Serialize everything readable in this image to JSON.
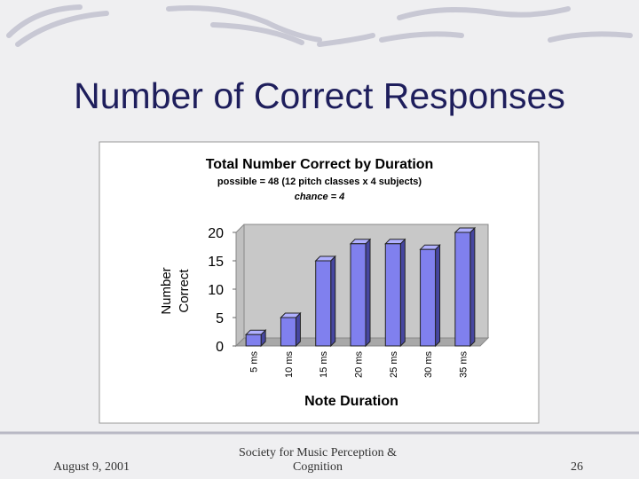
{
  "slide": {
    "title": "Number of Correct Responses",
    "footer": {
      "date": "August 9, 2001",
      "center_lines": [
        "Society for Music Perception &",
        "Cognition"
      ],
      "page": "26"
    }
  },
  "chart_data": {
    "type": "bar",
    "title": "Total Number Correct by Duration",
    "subtitle": "possible = 48 (12 pitch classes x 4 subjects)",
    "annotation": "chance = 4",
    "xlabel": "Note Duration",
    "ylabel": [
      "Number",
      "Correct"
    ],
    "categories": [
      "5 ms",
      "10 ms",
      "15 ms",
      "20 ms",
      "25 ms",
      "30 ms",
      "35 ms"
    ],
    "values": [
      2,
      5,
      15,
      18,
      18,
      17,
      20
    ],
    "color": "#8080ee",
    "ylim": [
      0,
      20
    ],
    "yticks": [
      0,
      5,
      10,
      15,
      20
    ]
  }
}
